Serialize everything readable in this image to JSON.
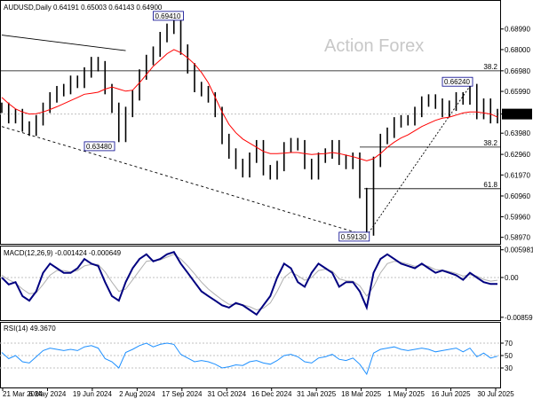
{
  "chart_data": {
    "type": "line",
    "title": "AUDUSD,Daily  0.64191 0.65003 0.64143 0.64900",
    "watermark": "Action Forex",
    "colors": {
      "price": "#000000",
      "ma": "#ff0000",
      "macd": "#000080",
      "signal": "#b0b0b0",
      "rsi": "#1e90ff",
      "frame": "#000000",
      "grid": "#c0c0c0"
    },
    "price_axis": {
      "ticks": [
        "0.68990",
        "0.68000",
        "0.66980",
        "0.65990",
        "0.64900",
        "0.63980",
        "0.62960",
        "0.61970",
        "0.60960",
        "0.59960",
        "0.58970"
      ],
      "highlight": "0.64900",
      "range": [
        0.587,
        0.703
      ]
    },
    "x_ticks": [
      "21 Mar 2024",
      "6 May 2024",
      "19 Jun 2024",
      "2 Aug 2024",
      "17 Sep 2024",
      "31 Oct 2024",
      "16 Dec 2024",
      "31 Jan 2025",
      "18 Mar 2025",
      "1 May 2025",
      "16 Jun 2025",
      "30 Jul 2025"
    ],
    "price_close": [
      0.652,
      0.647,
      0.649,
      0.643,
      0.641,
      0.646,
      0.652,
      0.657,
      0.66,
      0.661,
      0.665,
      0.664,
      0.669,
      0.674,
      0.672,
      0.661,
      0.652,
      0.638,
      0.65,
      0.658,
      0.668,
      0.675,
      0.679,
      0.686,
      0.69,
      0.693,
      0.68,
      0.671,
      0.662,
      0.66,
      0.657,
      0.65,
      0.637,
      0.63,
      0.625,
      0.621,
      0.628,
      0.634,
      0.622,
      0.62,
      0.624,
      0.633,
      0.635,
      0.634,
      0.625,
      0.62,
      0.628,
      0.63,
      0.634,
      0.627,
      0.625,
      0.628,
      0.611,
      0.593,
      0.626,
      0.637,
      0.64,
      0.645,
      0.646,
      0.646,
      0.65,
      0.655,
      0.656,
      0.654,
      0.65,
      0.653,
      0.657,
      0.656,
      0.661,
      0.649,
      0.654,
      0.647,
      0.649
    ],
    "ma": [
      0.657,
      0.654,
      0.6515,
      0.65,
      0.649,
      0.6492,
      0.65,
      0.6512,
      0.6525,
      0.654,
      0.6555,
      0.657,
      0.6585,
      0.659,
      0.6595,
      0.661,
      0.662,
      0.661,
      0.66,
      0.6605,
      0.664,
      0.668,
      0.672,
      0.675,
      0.678,
      0.68,
      0.6785,
      0.676,
      0.673,
      0.669,
      0.664,
      0.657,
      0.65,
      0.644,
      0.64,
      0.637,
      0.635,
      0.633,
      0.631,
      0.63,
      0.63,
      0.6302,
      0.6305,
      0.6305,
      0.63,
      0.6295,
      0.6298,
      0.63,
      0.6305,
      0.63,
      0.6292,
      0.6285,
      0.6275,
      0.6265,
      0.6275,
      0.63,
      0.633,
      0.6355,
      0.6375,
      0.639,
      0.641,
      0.643,
      0.6445,
      0.646,
      0.647,
      0.6475,
      0.6485,
      0.6495,
      0.65,
      0.65,
      0.6495,
      0.649,
      0.6475
    ],
    "annotations": {
      "highs_lows": [
        "0.69410",
        "0.63480",
        "0.66240",
        "0.59130"
      ],
      "fib_labels": [
        "38.2",
        "38.2",
        "61.8"
      ],
      "fib_levels": [
        0.6698,
        0.6331,
        0.6131
      ],
      "trendline_points": [
        {
          "x": 0,
          "y": 0.687
        },
        {
          "x": 18,
          "y": 0.6795
        },
        {
          "x": 0,
          "y": 0.643
        },
        {
          "x": 53,
          "y": 0.5905
        },
        {
          "x": 53,
          "y": 0.5905
        },
        {
          "x": 68,
          "y": 0.6624
        }
      ]
    },
    "macd": {
      "label": "MACD(12,26,9) -0.001424 -0.000649",
      "ticks": [
        "0.005981",
        "0.00",
        "-0.00859"
      ],
      "range": [
        -0.009,
        0.0065
      ],
      "macd": [
        0.0,
        -0.0015,
        -0.001,
        -0.004,
        -0.005,
        -0.003,
        0.001,
        0.003,
        0.002,
        0.001,
        0.001,
        0.002,
        0.004,
        0.003,
        0.0025,
        -0.001,
        -0.004,
        -0.005,
        -0.001,
        0.002,
        0.004,
        0.005,
        0.0035,
        0.004,
        0.005,
        0.0055,
        0.003,
        0.001,
        -0.001,
        -0.003,
        -0.004,
        -0.005,
        -0.006,
        -0.0065,
        -0.0055,
        -0.006,
        -0.007,
        -0.008,
        -0.006,
        -0.004,
        0.0,
        0.003,
        0.002,
        -0.001,
        -0.002,
        0.001,
        0.003,
        0.002,
        0.001,
        -0.002,
        -0.001,
        -0.001,
        -0.003,
        -0.0065,
        0.001,
        0.004,
        0.005,
        0.004,
        0.003,
        0.0025,
        0.002,
        0.003,
        0.002,
        0.001,
        0.0015,
        0.001,
        0.0005,
        -0.0005,
        0.001,
        0.0,
        -0.001,
        -0.0014,
        -0.0014
      ],
      "signal": [
        0.0005,
        -0.0005,
        -0.0012,
        -0.0025,
        -0.0035,
        -0.0033,
        -0.0015,
        0.0005,
        0.0015,
        0.0015,
        0.0012,
        0.0015,
        0.0025,
        0.0028,
        0.0028,
        0.0012,
        -0.001,
        -0.003,
        -0.0025,
        -0.0005,
        0.0015,
        0.0035,
        0.0037,
        0.0038,
        0.0044,
        0.005,
        0.004,
        0.0025,
        0.0008,
        -0.001,
        -0.0025,
        -0.0037,
        -0.0048,
        -0.0058,
        -0.0058,
        -0.0059,
        -0.0063,
        -0.007,
        -0.0066,
        -0.0055,
        -0.003,
        0.0,
        0.0012,
        0.0004,
        -0.0006,
        0.0,
        0.0015,
        0.0018,
        0.0014,
        -0.0003,
        -0.0007,
        -0.0008,
        -0.0018,
        -0.004,
        -0.002,
        0.001,
        0.003,
        0.0035,
        0.0033,
        0.0029,
        0.0024,
        0.0027,
        0.0024,
        0.0017,
        0.0016,
        0.0013,
        0.0009,
        0.0003,
        0.0006,
        0.0003,
        -0.0004,
        -0.0008,
        -0.0006
      ]
    },
    "rsi": {
      "label": "RSI(14) 49.3670",
      "ticks": [
        "70",
        "50",
        "30"
      ],
      "range": [
        0,
        100
      ],
      "values": [
        55,
        45,
        50,
        40,
        38,
        48,
        58,
        62,
        60,
        58,
        60,
        58,
        64,
        66,
        62,
        45,
        40,
        30,
        55,
        60,
        66,
        70,
        64,
        68,
        70,
        68,
        52,
        46,
        40,
        42,
        40,
        36,
        30,
        32,
        35,
        34,
        40,
        42,
        38,
        36,
        42,
        50,
        52,
        48,
        40,
        38,
        46,
        48,
        52,
        44,
        42,
        46,
        36,
        20,
        54,
        60,
        62,
        64,
        60,
        58,
        60,
        62,
        60,
        56,
        58,
        60,
        62,
        56,
        62,
        48,
        54,
        46,
        49
      ]
    }
  }
}
